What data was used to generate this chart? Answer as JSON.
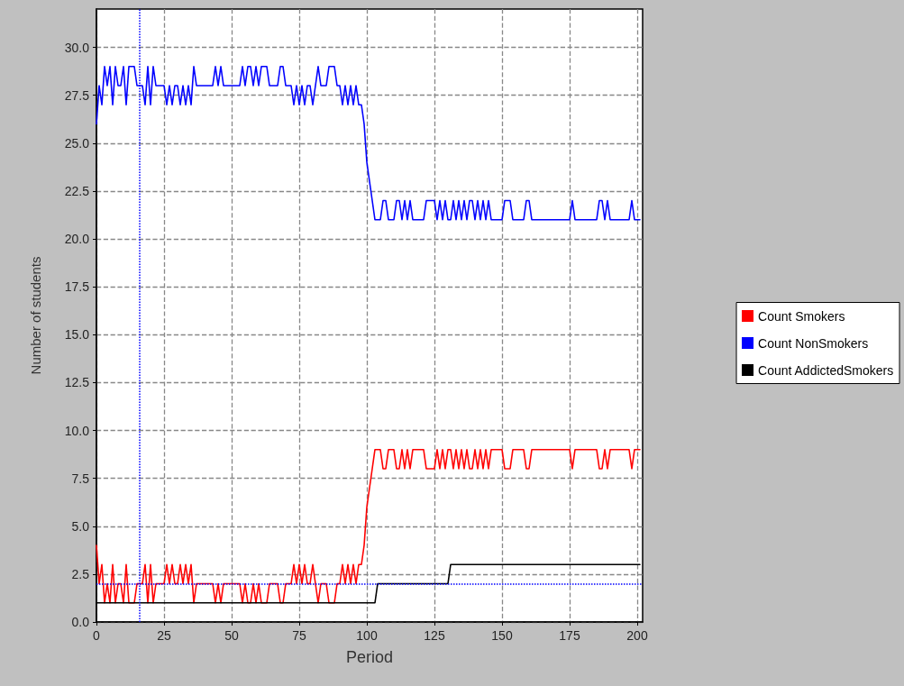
{
  "chart_data": {
    "type": "line",
    "xlabel": "Period",
    "ylabel": "Number of students",
    "xlim": [
      0,
      202
    ],
    "ylim": [
      0,
      32
    ],
    "xticks": [
      0,
      25,
      50,
      75,
      100,
      125,
      150,
      175,
      200
    ],
    "yticks": [
      {
        "value": 0,
        "label": "0.0"
      },
      {
        "value": 2.5,
        "label": "2.5"
      },
      {
        "value": 5,
        "label": "5.0"
      },
      {
        "value": 7.5,
        "label": "7.5"
      },
      {
        "value": 10,
        "label": "10.0"
      },
      {
        "value": 12.5,
        "label": "12.5"
      },
      {
        "value": 15,
        "label": "15.0"
      },
      {
        "value": 17.5,
        "label": "17.5"
      },
      {
        "value": 20,
        "label": "20.0"
      },
      {
        "value": 22.5,
        "label": "22.5"
      },
      {
        "value": 25,
        "label": "25.0"
      },
      {
        "value": 27.5,
        "label": "27.5"
      },
      {
        "value": 30,
        "label": "30.0"
      }
    ],
    "grid": true,
    "legend": "right",
    "marker": "none",
    "line_style": "solid",
    "x": [
      0,
      1,
      2,
      3,
      4,
      5,
      6,
      7,
      8,
      9,
      10,
      11,
      12,
      13,
      14,
      15,
      16,
      17,
      18,
      19,
      20,
      21,
      22,
      23,
      24,
      25,
      26,
      27,
      28,
      29,
      30,
      31,
      32,
      33,
      34,
      35,
      36,
      37,
      38,
      39,
      40,
      41,
      42,
      43,
      44,
      45,
      46,
      47,
      48,
      49,
      50,
      51,
      52,
      53,
      54,
      55,
      56,
      57,
      58,
      59,
      60,
      61,
      62,
      63,
      64,
      65,
      66,
      67,
      68,
      69,
      70,
      71,
      72,
      73,
      74,
      75,
      76,
      77,
      78,
      79,
      80,
      81,
      82,
      83,
      84,
      85,
      86,
      87,
      88,
      89,
      90,
      91,
      92,
      93,
      94,
      95,
      96,
      97,
      98,
      99,
      100,
      101,
      102,
      103,
      104,
      105,
      106,
      107,
      108,
      109,
      110,
      111,
      112,
      113,
      114,
      115,
      116,
      117,
      118,
      119,
      120,
      121,
      122,
      123,
      124,
      125,
      126,
      127,
      128,
      129,
      130,
      131,
      132,
      133,
      134,
      135,
      136,
      137,
      138,
      139,
      140,
      141,
      142,
      143,
      144,
      145,
      146,
      147,
      148,
      149,
      150,
      151,
      152,
      153,
      154,
      155,
      156,
      157,
      158,
      159,
      160,
      161,
      162,
      163,
      164,
      165,
      166,
      167,
      168,
      169,
      170,
      171,
      172,
      173,
      174,
      175,
      176,
      177,
      178,
      179,
      180,
      181,
      182,
      183,
      184,
      185,
      186,
      187,
      188,
      189,
      190,
      191,
      192,
      193,
      194,
      195,
      196,
      197,
      198,
      199,
      200,
      201
    ],
    "series": [
      {
        "name": "Count Smokers",
        "color": "#ff0000",
        "values": [
          4,
          2,
          3,
          1,
          2,
          1,
          3,
          1,
          2,
          2,
          1,
          3,
          1,
          1,
          1,
          2,
          2,
          2,
          3,
          1,
          3,
          1,
          2,
          2,
          2,
          2,
          3,
          2,
          3,
          2,
          2,
          3,
          2,
          3,
          2,
          3,
          1,
          2,
          2,
          2,
          2,
          2,
          2,
          2,
          1,
          2,
          1,
          2,
          2,
          2,
          2,
          2,
          2,
          2,
          1,
          2,
          1,
          1,
          2,
          1,
          2,
          1,
          1,
          1,
          2,
          2,
          2,
          2,
          1,
          1,
          2,
          2,
          2,
          3,
          2,
          3,
          2,
          3,
          2,
          2,
          3,
          2,
          1,
          2,
          2,
          2,
          1,
          1,
          1,
          2,
          2,
          3,
          2,
          3,
          2,
          3,
          2,
          3,
          3,
          4,
          6,
          7,
          8,
          9,
          9,
          9,
          8,
          8,
          9,
          9,
          9,
          8,
          8,
          9,
          8,
          9,
          8,
          9,
          9,
          9,
          9,
          9,
          8,
          8,
          8,
          8,
          9,
          8,
          9,
          8,
          9,
          9,
          8,
          9,
          8,
          9,
          8,
          9,
          8,
          8,
          9,
          8,
          9,
          8,
          9,
          8,
          9,
          9,
          9,
          9,
          9,
          8,
          8,
          8,
          9,
          9,
          9,
          9,
          9,
          8,
          8,
          9,
          9,
          9,
          9,
          9,
          9,
          9,
          9,
          9,
          9,
          9,
          9,
          9,
          9,
          9,
          8,
          9,
          9,
          9,
          9,
          9,
          9,
          9,
          9,
          9,
          8,
          8,
          9,
          8,
          9,
          9,
          9,
          9,
          9,
          9,
          9,
          9,
          8,
          9,
          9,
          9
        ]
      },
      {
        "name": "Count NonSmokers",
        "color": "#0000ff",
        "values": [
          26,
          28,
          27,
          29,
          28,
          29,
          27,
          29,
          28,
          28,
          29,
          27,
          29,
          29,
          29,
          28,
          28,
          28,
          27,
          29,
          27,
          29,
          28,
          28,
          28,
          28,
          27,
          28,
          27,
          28,
          28,
          27,
          28,
          27,
          28,
          27,
          29,
          28,
          28,
          28,
          28,
          28,
          28,
          28,
          29,
          28,
          29,
          28,
          28,
          28,
          28,
          28,
          28,
          28,
          29,
          28,
          29,
          29,
          28,
          29,
          28,
          29,
          29,
          29,
          28,
          28,
          28,
          28,
          29,
          29,
          28,
          28,
          28,
          27,
          28,
          27,
          28,
          27,
          28,
          28,
          27,
          28,
          29,
          28,
          28,
          28,
          29,
          29,
          29,
          28,
          28,
          27,
          28,
          27,
          28,
          27,
          28,
          27,
          27,
          26,
          24,
          23,
          22,
          21,
          21,
          21,
          22,
          22,
          21,
          21,
          21,
          22,
          22,
          21,
          22,
          21,
          22,
          21,
          21,
          21,
          21,
          21,
          22,
          22,
          22,
          22,
          21,
          22,
          21,
          22,
          21,
          21,
          22,
          21,
          22,
          21,
          22,
          21,
          22,
          22,
          21,
          22,
          21,
          22,
          21,
          22,
          21,
          21,
          21,
          21,
          21,
          22,
          22,
          22,
          21,
          21,
          21,
          21,
          21,
          22,
          22,
          21,
          21,
          21,
          21,
          21,
          21,
          21,
          21,
          21,
          21,
          21,
          21,
          21,
          21,
          21,
          22,
          21,
          21,
          21,
          21,
          21,
          21,
          21,
          21,
          21,
          22,
          22,
          21,
          22,
          21,
          21,
          21,
          21,
          21,
          21,
          21,
          21,
          22,
          21,
          21,
          21
        ]
      },
      {
        "name": "Count AddictedSmokers",
        "color": "#000000",
        "values": [
          1,
          1,
          1,
          1,
          1,
          1,
          1,
          1,
          1,
          1,
          1,
          1,
          1,
          1,
          1,
          1,
          1,
          1,
          1,
          1,
          1,
          1,
          1,
          1,
          1,
          1,
          1,
          1,
          1,
          1,
          1,
          1,
          1,
          1,
          1,
          1,
          1,
          1,
          1,
          1,
          1,
          1,
          1,
          1,
          1,
          1,
          1,
          1,
          1,
          1,
          1,
          1,
          1,
          1,
          1,
          1,
          1,
          1,
          1,
          1,
          1,
          1,
          1,
          1,
          1,
          1,
          1,
          1,
          1,
          1,
          1,
          1,
          1,
          1,
          1,
          1,
          1,
          1,
          1,
          1,
          1,
          1,
          1,
          1,
          1,
          1,
          1,
          1,
          1,
          1,
          1,
          1,
          1,
          1,
          1,
          1,
          1,
          1,
          1,
          1,
          1,
          1,
          1,
          1,
          2,
          2,
          2,
          2,
          2,
          2,
          2,
          2,
          2,
          2,
          2,
          2,
          2,
          2,
          2,
          2,
          2,
          2,
          2,
          2,
          2,
          2,
          2,
          2,
          2,
          2,
          2,
          3,
          3,
          3,
          3,
          3,
          3,
          3,
          3,
          3,
          3,
          3,
          3,
          3,
          3,
          3,
          3,
          3,
          3,
          3,
          3,
          3,
          3,
          3,
          3,
          3,
          3,
          3,
          3,
          3,
          3,
          3,
          3,
          3,
          3,
          3,
          3,
          3,
          3,
          3,
          3,
          3,
          3,
          3,
          3,
          3,
          3,
          3,
          3,
          3,
          3,
          3,
          3,
          3,
          3,
          3,
          3,
          3,
          3,
          3,
          3,
          3,
          3,
          3,
          3,
          3,
          3,
          3,
          3,
          3,
          3,
          3
        ]
      }
    ],
    "ref_lines": [
      {
        "axis": "x",
        "value": 16,
        "color": "#0000ff",
        "line_style": "dotted"
      },
      {
        "axis": "y",
        "value": 2,
        "color": "#0000ff",
        "line_style": "dotted"
      }
    ]
  }
}
